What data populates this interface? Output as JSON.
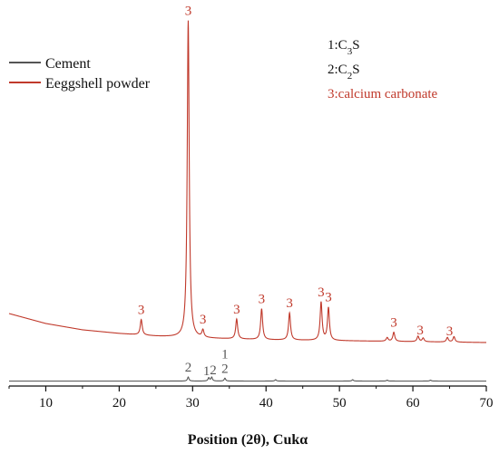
{
  "chart_data": {
    "type": "line",
    "title": "",
    "xlabel": "Position (2θ), Cukα",
    "ylabel": "",
    "xlim": [
      5,
      70
    ],
    "xticks": [
      "10",
      "20",
      "30",
      "40",
      "50",
      "60",
      "70"
    ],
    "grid": false,
    "legend_position": "top-left",
    "legend": [
      {
        "name": "Cement",
        "color": "#555555"
      },
      {
        "name": "Eeggshell powder",
        "color": "#c0392b"
      }
    ],
    "key": [
      {
        "number": "1",
        "prefix": "C",
        "sub": "3",
        "suffix": "S",
        "color": "#111111"
      },
      {
        "number": "2",
        "prefix": "C",
        "sub": "2",
        "suffix": "S",
        "color": "#111111"
      },
      {
        "number": "3",
        "text": "calcium carbonate",
        "color": "#c0392b"
      }
    ],
    "series": [
      {
        "name": "Cement",
        "color": "#555555",
        "baseline": 2,
        "peaks": [
          [
            29.4,
            4.5
          ],
          [
            32.2,
            3.6
          ],
          [
            32.6,
            4.2
          ],
          [
            34.4,
            3.2
          ],
          [
            41.3,
            1.5
          ],
          [
            51.8,
            1.5
          ],
          [
            56.5,
            1.0
          ],
          [
            62.4,
            1.0
          ]
        ],
        "labels": [
          {
            "x": 29.4,
            "text": "2"
          },
          {
            "x": 31.9,
            "text": "1"
          },
          {
            "x": 32.8,
            "text": "2"
          },
          {
            "x": 34.4,
            "text": "1",
            "stack": "2"
          }
        ]
      },
      {
        "name": "Eeggshell powder",
        "color": "#c0392b",
        "background": [
          [
            5,
            35
          ],
          [
            10,
            24
          ],
          [
            15,
            17
          ],
          [
            20,
            13
          ],
          [
            25,
            10
          ],
          [
            30,
            8
          ],
          [
            40,
            6
          ],
          [
            50,
            5
          ],
          [
            60,
            4
          ],
          [
            70,
            3
          ]
        ],
        "peaks": [
          [
            23.0,
            17
          ],
          [
            29.4,
            350
          ],
          [
            31.4,
            8
          ],
          [
            36.0,
            22
          ],
          [
            39.4,
            34
          ],
          [
            43.2,
            30
          ],
          [
            47.5,
            42
          ],
          [
            48.5,
            36
          ],
          [
            56.5,
            4
          ],
          [
            57.4,
            10
          ],
          [
            60.7,
            6
          ],
          [
            61.4,
            4
          ],
          [
            64.7,
            5
          ],
          [
            65.6,
            6
          ]
        ],
        "labels": [
          {
            "x": 23.0,
            "text": "3"
          },
          {
            "x": 29.4,
            "text": "3"
          },
          {
            "x": 31.4,
            "text": "3"
          },
          {
            "x": 36.0,
            "text": "3"
          },
          {
            "x": 39.4,
            "text": "3"
          },
          {
            "x": 43.2,
            "text": "3"
          },
          {
            "x": 47.5,
            "text": "3"
          },
          {
            "x": 48.5,
            "text": "3"
          },
          {
            "x": 57.4,
            "text": "3"
          },
          {
            "x": 61.0,
            "text": "3"
          },
          {
            "x": 65.0,
            "text": "3"
          }
        ]
      }
    ]
  }
}
